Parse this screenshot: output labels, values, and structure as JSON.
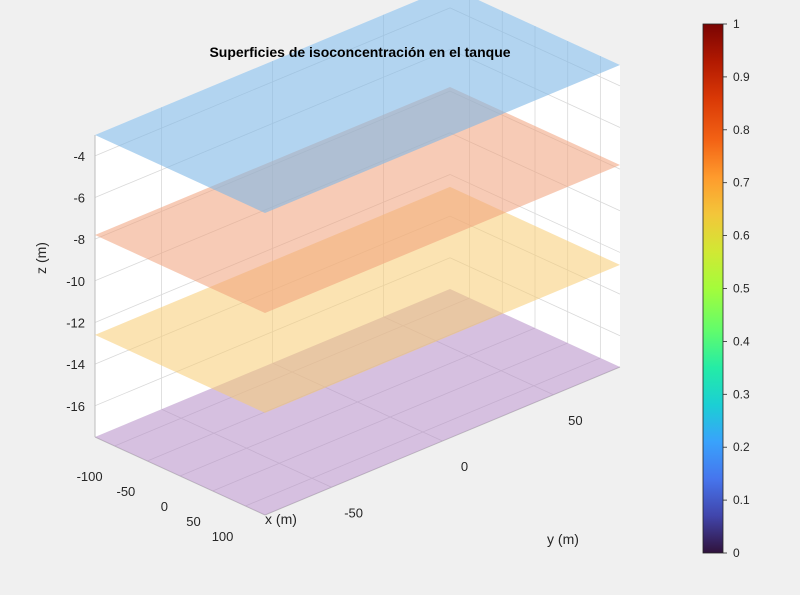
{
  "chart_data": {
    "type": "surface3d",
    "title": "Superficies de isoconcentración en el tanque",
    "xlabel": "x (m)",
    "ylabel": "y (m)",
    "zlabel": "z (m)",
    "xlim": [
      -130,
      130
    ],
    "ylim": [
      -80,
      80
    ],
    "zlim": [
      -17.5,
      -3
    ],
    "x_ticks": [
      -100,
      -50,
      0,
      50,
      100
    ],
    "y_ticks": [
      -50,
      0,
      50
    ],
    "z_ticks": [
      -4,
      -6,
      -8,
      -10,
      -12,
      -14,
      -16
    ],
    "x_tick_labels": [
      "-100",
      "-50",
      "0",
      "50",
      "100"
    ],
    "y_tick_labels": [
      "-50",
      "0",
      "50"
    ],
    "z_tick_labels": [
      "-4",
      "-6",
      "-8",
      "-10",
      "-12",
      "-14",
      "-16"
    ],
    "grid": true,
    "colormap": "turbo",
    "clim": [
      0,
      1
    ],
    "colorbar_ticks": [
      "0",
      "0.1",
      "0.2",
      "0.3",
      "0.4",
      "0.5",
      "0.6",
      "0.7",
      "0.8",
      "0.9",
      "1"
    ],
    "surfaces": [
      {
        "z": -3,
        "value": 0.18,
        "color": "#7fb8e6",
        "opacity": 0.6
      },
      {
        "z": -7.8,
        "value": 0.78,
        "color": "#f0a07a",
        "opacity": 0.55
      },
      {
        "z": -12.6,
        "value": 0.65,
        "color": "#f7cc72",
        "opacity": 0.55
      },
      {
        "z": -17.5,
        "value": 0.02,
        "color": "#b58cc6",
        "opacity": 0.55
      }
    ]
  }
}
